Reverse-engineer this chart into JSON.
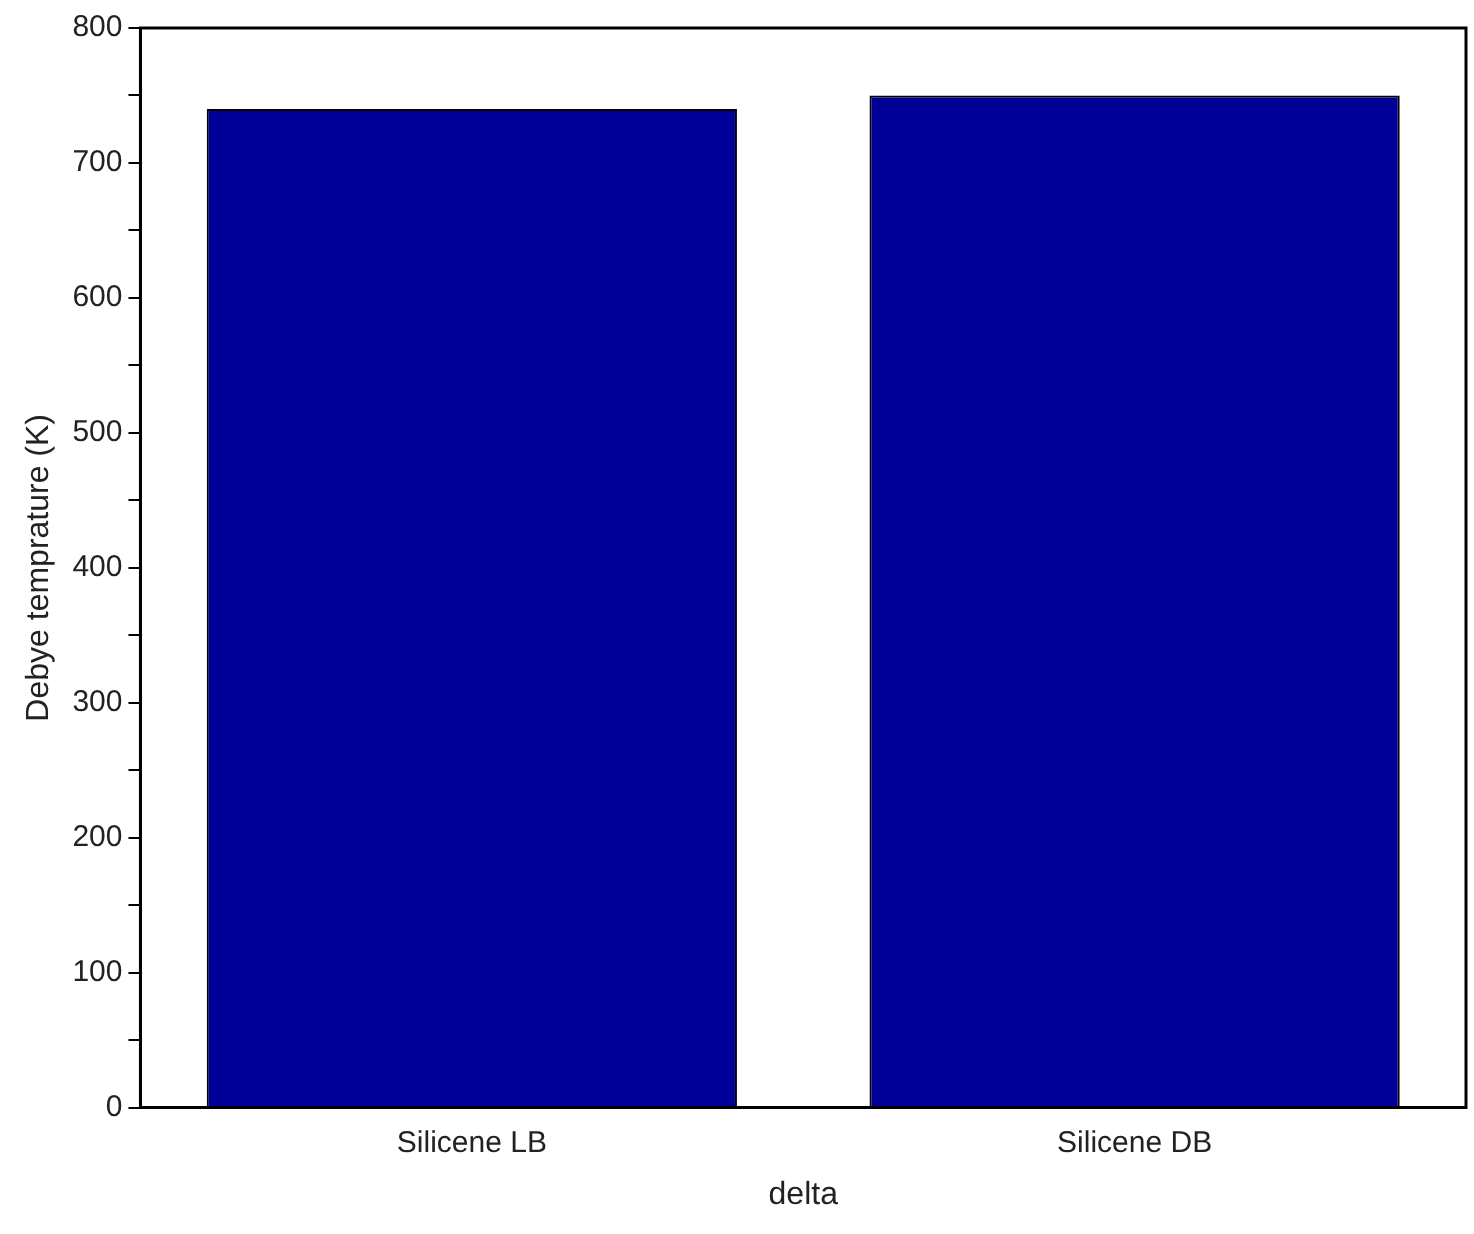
{
  "chart_data": {
    "type": "bar",
    "xlabel": "delta",
    "ylabel": "Debye temprature (K)",
    "categories": [
      "Silicene LB",
      "Silicene DB"
    ],
    "values": [
      740,
      750
    ],
    "color": "#000099",
    "ylim": [
      0,
      800
    ],
    "yticks": [
      0,
      {
        "value": 50,
        "label": null
      },
      100,
      {
        "value": 150,
        "label": null
      },
      200,
      {
        "value": 250,
        "label": null
      },
      300,
      {
        "value": 350,
        "label": null
      },
      400,
      {
        "value": 450,
        "label": null
      },
      500,
      {
        "value": 550,
        "label": null
      },
      600,
      {
        "value": 650,
        "label": null
      },
      700,
      {
        "value": 750,
        "label": null
      },
      800
    ],
    "grid": false,
    "legend": false
  }
}
